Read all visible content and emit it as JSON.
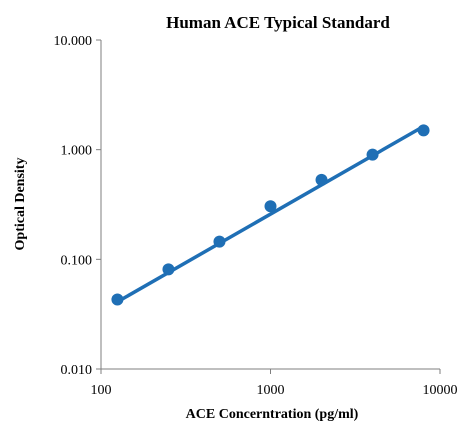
{
  "chart_data": {
    "type": "scatter",
    "title": "Human ACE Typical Standard",
    "xlabel": "ACE Concerntration (pg/ml)",
    "ylabel": "Optical Density",
    "x_scale": "log",
    "y_scale": "log",
    "xlim": [
      100,
      10000
    ],
    "ylim": [
      0.01,
      10
    ],
    "x_ticks": [
      100,
      1000,
      10000
    ],
    "x_tick_labels": [
      "100",
      "1000",
      "10000"
    ],
    "y_ticks": [
      0.01,
      0.1,
      1,
      10
    ],
    "y_tick_labels": [
      "0.010",
      "0.100",
      "1.000",
      "10.000"
    ],
    "grid": false,
    "series": [
      {
        "x": [
          125,
          250,
          500,
          1000,
          2000,
          4000,
          8000
        ],
        "y": [
          0.043,
          0.081,
          0.145,
          0.305,
          0.53,
          0.9,
          1.5
        ],
        "color": "#1f6fb5"
      }
    ],
    "trendline": {
      "x": [
        125,
        8000
      ],
      "y": [
        0.041,
        1.63
      ],
      "color": "#1f6fb5"
    }
  }
}
